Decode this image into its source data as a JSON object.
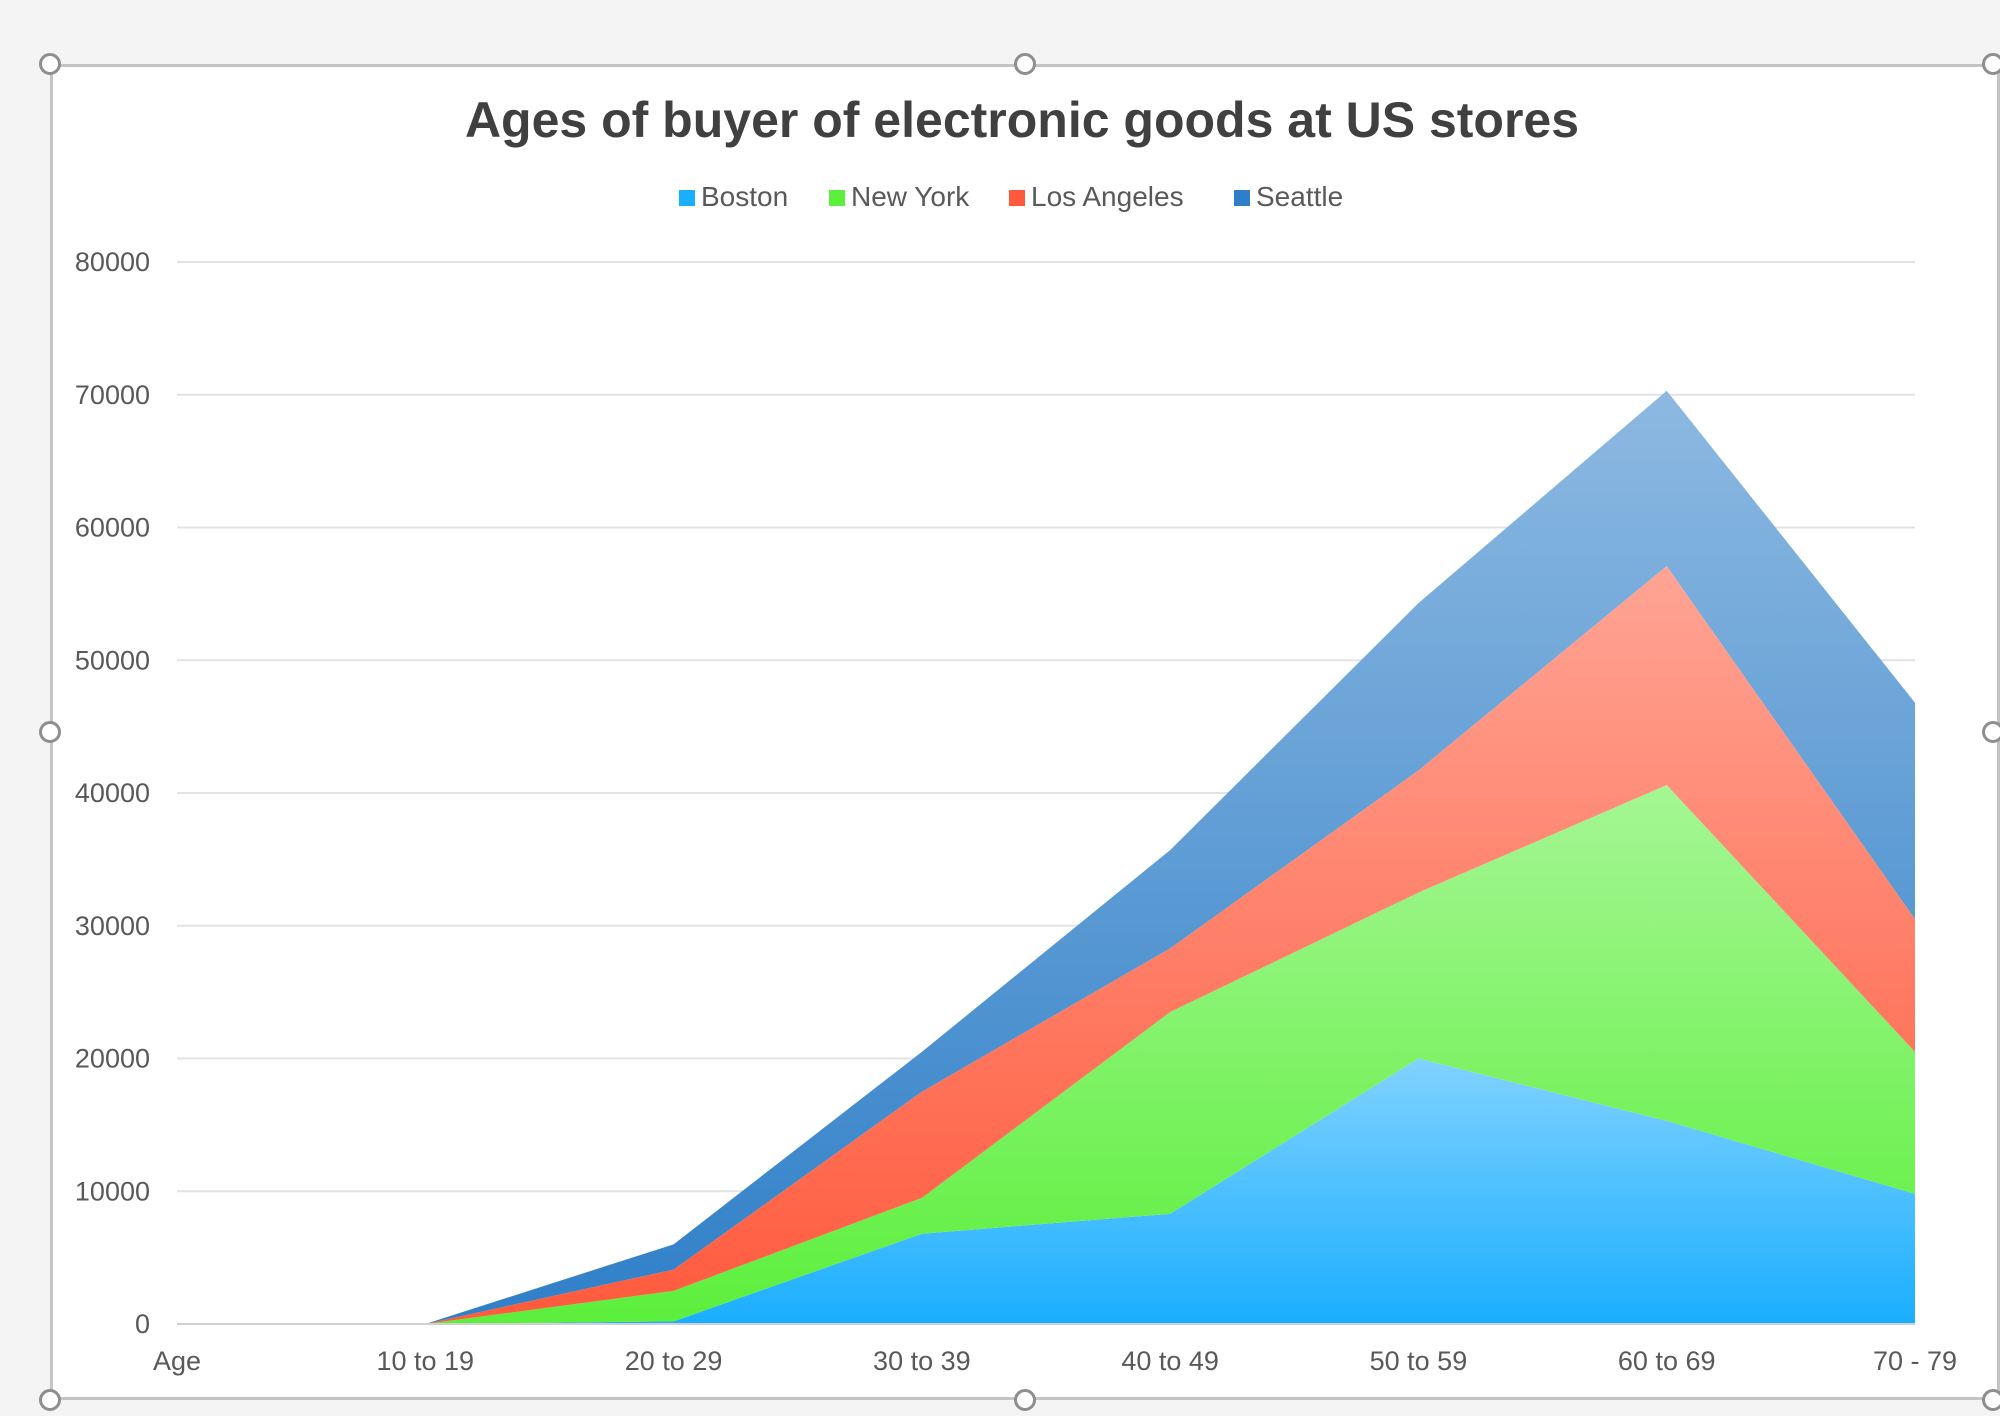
{
  "chart_data": {
    "type": "area",
    "stacked": true,
    "title": "Ages of buyer of electronic goods at US stores",
    "xlabel": "",
    "ylabel": "",
    "categories": [
      "Age",
      "10 to 19",
      "20 to 29",
      "30 to 39",
      "40 to 49",
      "50 to 59",
      "60 to 69",
      "70 - 79"
    ],
    "ylim": [
      0,
      80000
    ],
    "yticks": [
      0,
      10000,
      20000,
      30000,
      40000,
      50000,
      60000,
      70000,
      80000
    ],
    "grid": true,
    "legend_position": "top",
    "series": [
      {
        "name": "Boston",
        "values": [
          0,
          0,
          200,
          6800,
          8300,
          20000,
          15300,
          9800
        ],
        "color": "#1aaeff"
      },
      {
        "name": "New York",
        "values": [
          0,
          0,
          2300,
          2700,
          15200,
          12500,
          25300,
          10700
        ],
        "color": "#5cef3c"
      },
      {
        "name": "Los Angeles",
        "values": [
          0,
          0,
          1600,
          8000,
          4800,
          9200,
          16500,
          10000
        ],
        "color": "#ff5a3c"
      },
      {
        "name": "Seattle",
        "values": [
          0,
          0,
          1900,
          3000,
          7400,
          12600,
          13200,
          16300
        ],
        "color": "#2f7fc8"
      }
    ]
  }
}
